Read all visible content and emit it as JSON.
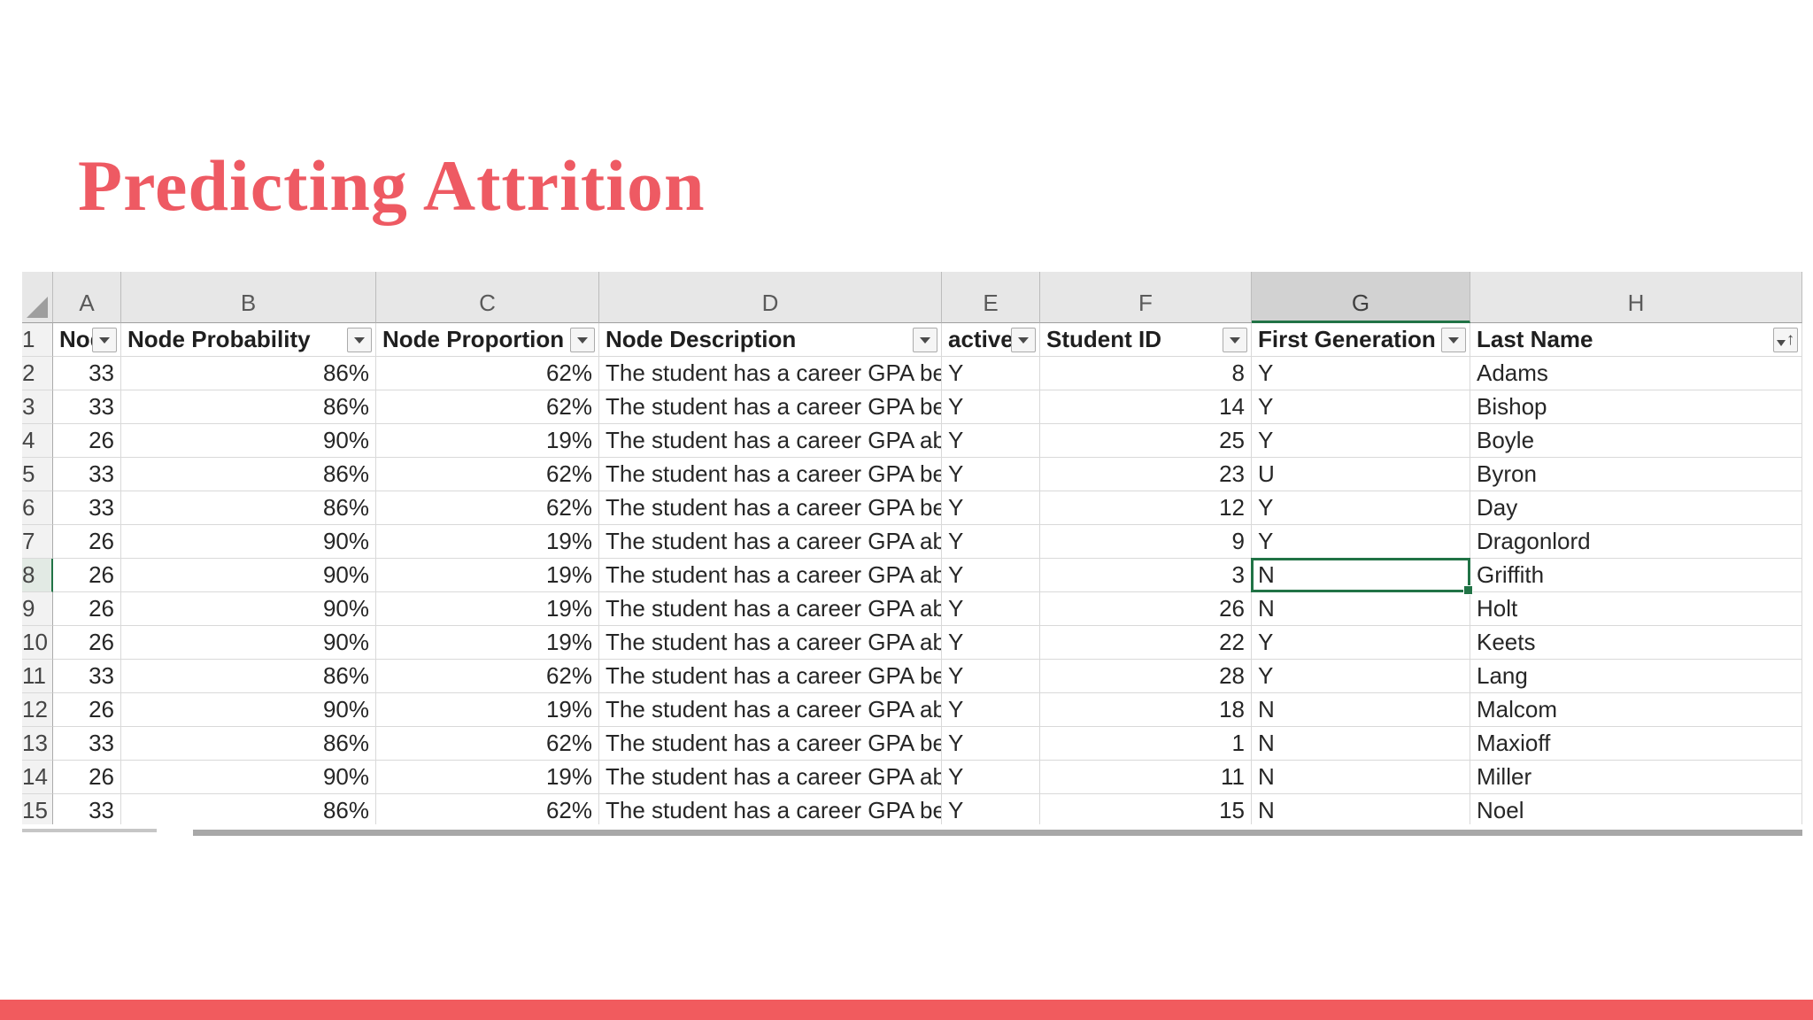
{
  "slide": {
    "title": "Predicting Attrition"
  },
  "colors": {
    "title_red": "#ee5a63",
    "footer_bar_red": "#f15b5e",
    "selection_green": "#217346"
  },
  "spreadsheet": {
    "column_letters": [
      "A",
      "B",
      "C",
      "D",
      "E",
      "F",
      "G",
      "H"
    ],
    "header_row_num": "1",
    "headers": [
      {
        "col": "A",
        "label": "Node",
        "filter_icon": "dropdown"
      },
      {
        "col": "B",
        "label": "Node Probability",
        "filter_icon": "dropdown"
      },
      {
        "col": "C",
        "label": "Node Proportion",
        "filter_icon": "dropdown"
      },
      {
        "col": "D",
        "label": "Node Description",
        "filter_icon": "dropdown"
      },
      {
        "col": "E",
        "label": "active",
        "filter_icon": "dropdown"
      },
      {
        "col": "F",
        "label": "Student ID",
        "filter_icon": "dropdown"
      },
      {
        "col": "G",
        "label": "First Generation",
        "filter_icon": "dropdown"
      },
      {
        "col": "H",
        "label": "Last Name",
        "filter_icon": "sort-ascending"
      }
    ],
    "selection": {
      "column": "G",
      "row_num": "8",
      "value": "N"
    },
    "rows": [
      {
        "num": "2",
        "node": "33",
        "probability": "86%",
        "proportion": "62%",
        "description": "The student has a career GPA be",
        "active": "Y",
        "student_id": "8",
        "first_gen": "Y",
        "last_name": "Adams"
      },
      {
        "num": "3",
        "node": "33",
        "probability": "86%",
        "proportion": "62%",
        "description": "The student has a career GPA be",
        "active": "Y",
        "student_id": "14",
        "first_gen": "Y",
        "last_name": "Bishop"
      },
      {
        "num": "4",
        "node": "26",
        "probability": "90%",
        "proportion": "19%",
        "description": "The student has a career GPA ab",
        "active": "Y",
        "student_id": "25",
        "first_gen": "Y",
        "last_name": "Boyle"
      },
      {
        "num": "5",
        "node": "33",
        "probability": "86%",
        "proportion": "62%",
        "description": "The student has a career GPA be",
        "active": "Y",
        "student_id": "23",
        "first_gen": "U",
        "last_name": "Byron"
      },
      {
        "num": "6",
        "node": "33",
        "probability": "86%",
        "proportion": "62%",
        "description": "The student has a career GPA be",
        "active": "Y",
        "student_id": "12",
        "first_gen": "Y",
        "last_name": "Day"
      },
      {
        "num": "7",
        "node": "26",
        "probability": "90%",
        "proportion": "19%",
        "description": "The student has a career GPA ab",
        "active": "Y",
        "student_id": "9",
        "first_gen": "Y",
        "last_name": "Dragonlord"
      },
      {
        "num": "8",
        "node": "26",
        "probability": "90%",
        "proportion": "19%",
        "description": "The student has a career GPA ab",
        "active": "Y",
        "student_id": "3",
        "first_gen": "N",
        "last_name": "Griffith"
      },
      {
        "num": "9",
        "node": "26",
        "probability": "90%",
        "proportion": "19%",
        "description": "The student has a career GPA ab",
        "active": "Y",
        "student_id": "26",
        "first_gen": "N",
        "last_name": "Holt"
      },
      {
        "num": "10",
        "node": "26",
        "probability": "90%",
        "proportion": "19%",
        "description": "The student has a career GPA ab",
        "active": "Y",
        "student_id": "22",
        "first_gen": "Y",
        "last_name": "Keets"
      },
      {
        "num": "11",
        "node": "33",
        "probability": "86%",
        "proportion": "62%",
        "description": "The student has a career GPA be",
        "active": "Y",
        "student_id": "28",
        "first_gen": "Y",
        "last_name": "Lang"
      },
      {
        "num": "12",
        "node": "26",
        "probability": "90%",
        "proportion": "19%",
        "description": "The student has a career GPA ab",
        "active": "Y",
        "student_id": "18",
        "first_gen": "N",
        "last_name": "Malcom"
      },
      {
        "num": "13",
        "node": "33",
        "probability": "86%",
        "proportion": "62%",
        "description": "The student has a career GPA be",
        "active": "Y",
        "student_id": "1",
        "first_gen": "N",
        "last_name": "Maxioff"
      },
      {
        "num": "14",
        "node": "26",
        "probability": "90%",
        "proportion": "19%",
        "description": "The student has a career GPA ab",
        "active": "Y",
        "student_id": "11",
        "first_gen": "N",
        "last_name": "Miller"
      },
      {
        "num": "15",
        "node": "33",
        "probability": "86%",
        "proportion": "62%",
        "description": "The student has a career GPA be",
        "active": "Y",
        "student_id": "15",
        "first_gen": "N",
        "last_name": "Noel"
      }
    ]
  }
}
